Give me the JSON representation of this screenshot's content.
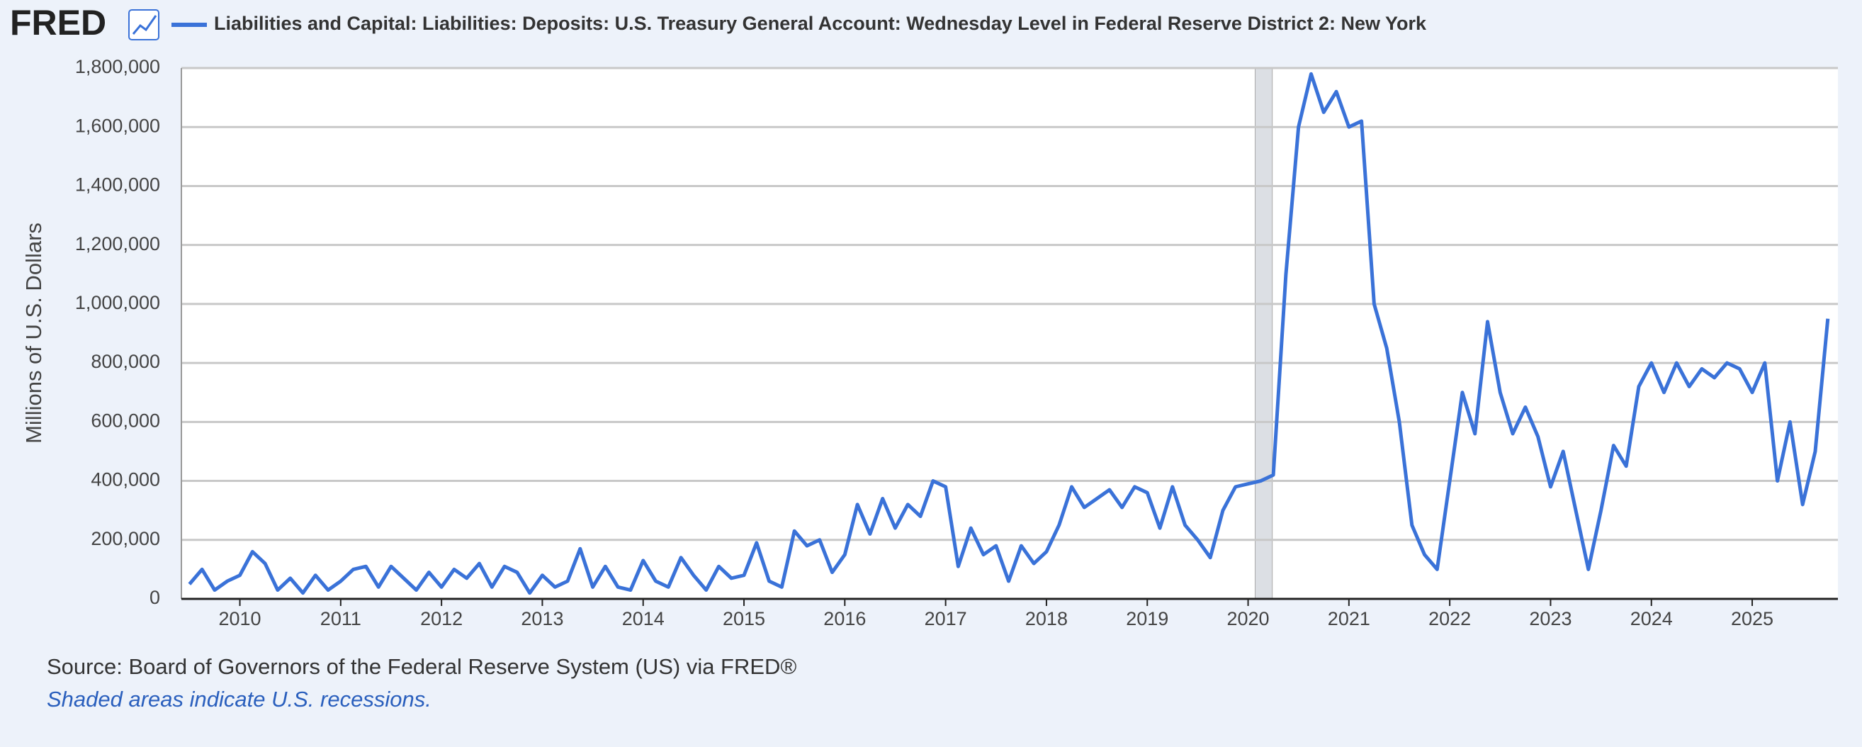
{
  "chart_data": {
    "type": "line",
    "logo": "FRED",
    "title": "Liabilities and Capital: Liabilities: Deposits: U.S. Treasury General Account: Wednesday Level in Federal Reserve District 2: New York",
    "y_label": "Millions of U.S. Dollars",
    "source": "Source: Board of Governors of the Federal Reserve System (US) via FRED®",
    "note": "Shaded areas indicate U.S. recessions.",
    "grid": true,
    "recessions": [
      {
        "start": 2020.07,
        "end": 2020.24
      }
    ],
    "xlim": [
      2009.42,
      2025.85
    ],
    "xticks": [
      2010,
      2011,
      2012,
      2013,
      2014,
      2015,
      2016,
      2017,
      2018,
      2019,
      2020,
      2021,
      2022,
      2023,
      2024,
      2025
    ],
    "ylim": [
      0,
      1800000
    ],
    "yticks": [
      0,
      {
        "value": 200000,
        "label": "200,000"
      },
      {
        "value": 400000,
        "label": "400,000"
      },
      {
        "value": 600000,
        "label": "600,000"
      },
      {
        "value": 800000,
        "label": "800,000"
      },
      {
        "value": 1000000,
        "label": "1,000,000"
      },
      {
        "value": 1200000,
        "label": "1,200,000"
      },
      {
        "value": 1400000,
        "label": "1,400,000"
      },
      {
        "value": 1600000,
        "label": "1,600,000"
      },
      {
        "value": 1800000,
        "label": "1,800,000"
      }
    ],
    "x": [
      2009.5,
      2009.625,
      2009.75,
      2009.875,
      2010,
      2010.125,
      2010.25,
      2010.375,
      2010.5,
      2010.625,
      2010.75,
      2010.875,
      2011,
      2011.125,
      2011.25,
      2011.375,
      2011.5,
      2011.625,
      2011.75,
      2011.875,
      2012,
      2012.125,
      2012.25,
      2012.375,
      2012.5,
      2012.625,
      2012.75,
      2012.875,
      2013,
      2013.125,
      2013.25,
      2013.375,
      2013.5,
      2013.625,
      2013.75,
      2013.875,
      2014,
      2014.125,
      2014.25,
      2014.375,
      2014.5,
      2014.625,
      2014.75,
      2014.875,
      2015,
      2015.125,
      2015.25,
      2015.375,
      2015.5,
      2015.625,
      2015.75,
      2015.875,
      2016,
      2016.125,
      2016.25,
      2016.375,
      2016.5,
      2016.625,
      2016.75,
      2016.875,
      2017,
      2017.125,
      2017.25,
      2017.375,
      2017.5,
      2017.625,
      2017.75,
      2017.875,
      2018,
      2018.125,
      2018.25,
      2018.375,
      2018.5,
      2018.625,
      2018.75,
      2018.875,
      2019,
      2019.125,
      2019.25,
      2019.375,
      2019.5,
      2019.625,
      2019.75,
      2019.875,
      2020,
      2020.125,
      2020.25,
      2020.375,
      2020.5,
      2020.625,
      2020.75,
      2020.875,
      2021,
      2021.125,
      2021.25,
      2021.375,
      2021.5,
      2021.625,
      2021.75,
      2021.875,
      2022,
      2022.125,
      2022.25,
      2022.375,
      2022.5,
      2022.625,
      2022.75,
      2022.875,
      2023,
      2023.125,
      2023.25,
      2023.375,
      2023.5,
      2023.625,
      2023.75,
      2023.875,
      2024,
      2024.125,
      2024.25,
      2024.375,
      2024.5,
      2024.625,
      2024.75,
      2024.875,
      2025,
      2025.125,
      2025.25,
      2025.375,
      2025.5,
      2025.625,
      2025.75
    ],
    "series": [
      {
        "name": "Liabilities and Capital: Liabilities: Deposits: U.S. Treasury General Account: Wednesday Level in Federal Reserve District 2: New York",
        "color": "#3a72d8",
        "values": [
          50000,
          100000,
          30000,
          60000,
          80000,
          160000,
          120000,
          30000,
          70000,
          20000,
          80000,
          30000,
          60000,
          100000,
          110000,
          40000,
          110000,
          70000,
          30000,
          90000,
          40000,
          100000,
          70000,
          120000,
          40000,
          110000,
          90000,
          20000,
          80000,
          40000,
          60000,
          170000,
          40000,
          110000,
          40000,
          30000,
          130000,
          60000,
          40000,
          140000,
          80000,
          30000,
          110000,
          70000,
          80000,
          190000,
          60000,
          40000,
          230000,
          180000,
          200000,
          90000,
          150000,
          320000,
          220000,
          340000,
          240000,
          320000,
          280000,
          400000,
          380000,
          110000,
          240000,
          150000,
          180000,
          60000,
          180000,
          120000,
          160000,
          250000,
          380000,
          310000,
          340000,
          370000,
          310000,
          380000,
          360000,
          240000,
          380000,
          250000,
          200000,
          140000,
          300000,
          380000,
          390000,
          400000,
          420000,
          1100000,
          1600000,
          1780000,
          1650000,
          1720000,
          1600000,
          1620000,
          1000000,
          850000,
          600000,
          250000,
          150000,
          100000,
          400000,
          700000,
          560000,
          940000,
          700000,
          560000,
          650000,
          550000,
          380000,
          500000,
          300000,
          100000,
          300000,
          520000,
          450000,
          720000,
          800000,
          700000,
          800000,
          720000,
          780000,
          750000,
          800000,
          780000,
          700000,
          800000,
          400000,
          600000,
          320000,
          500000,
          950000
        ]
      }
    ]
  }
}
